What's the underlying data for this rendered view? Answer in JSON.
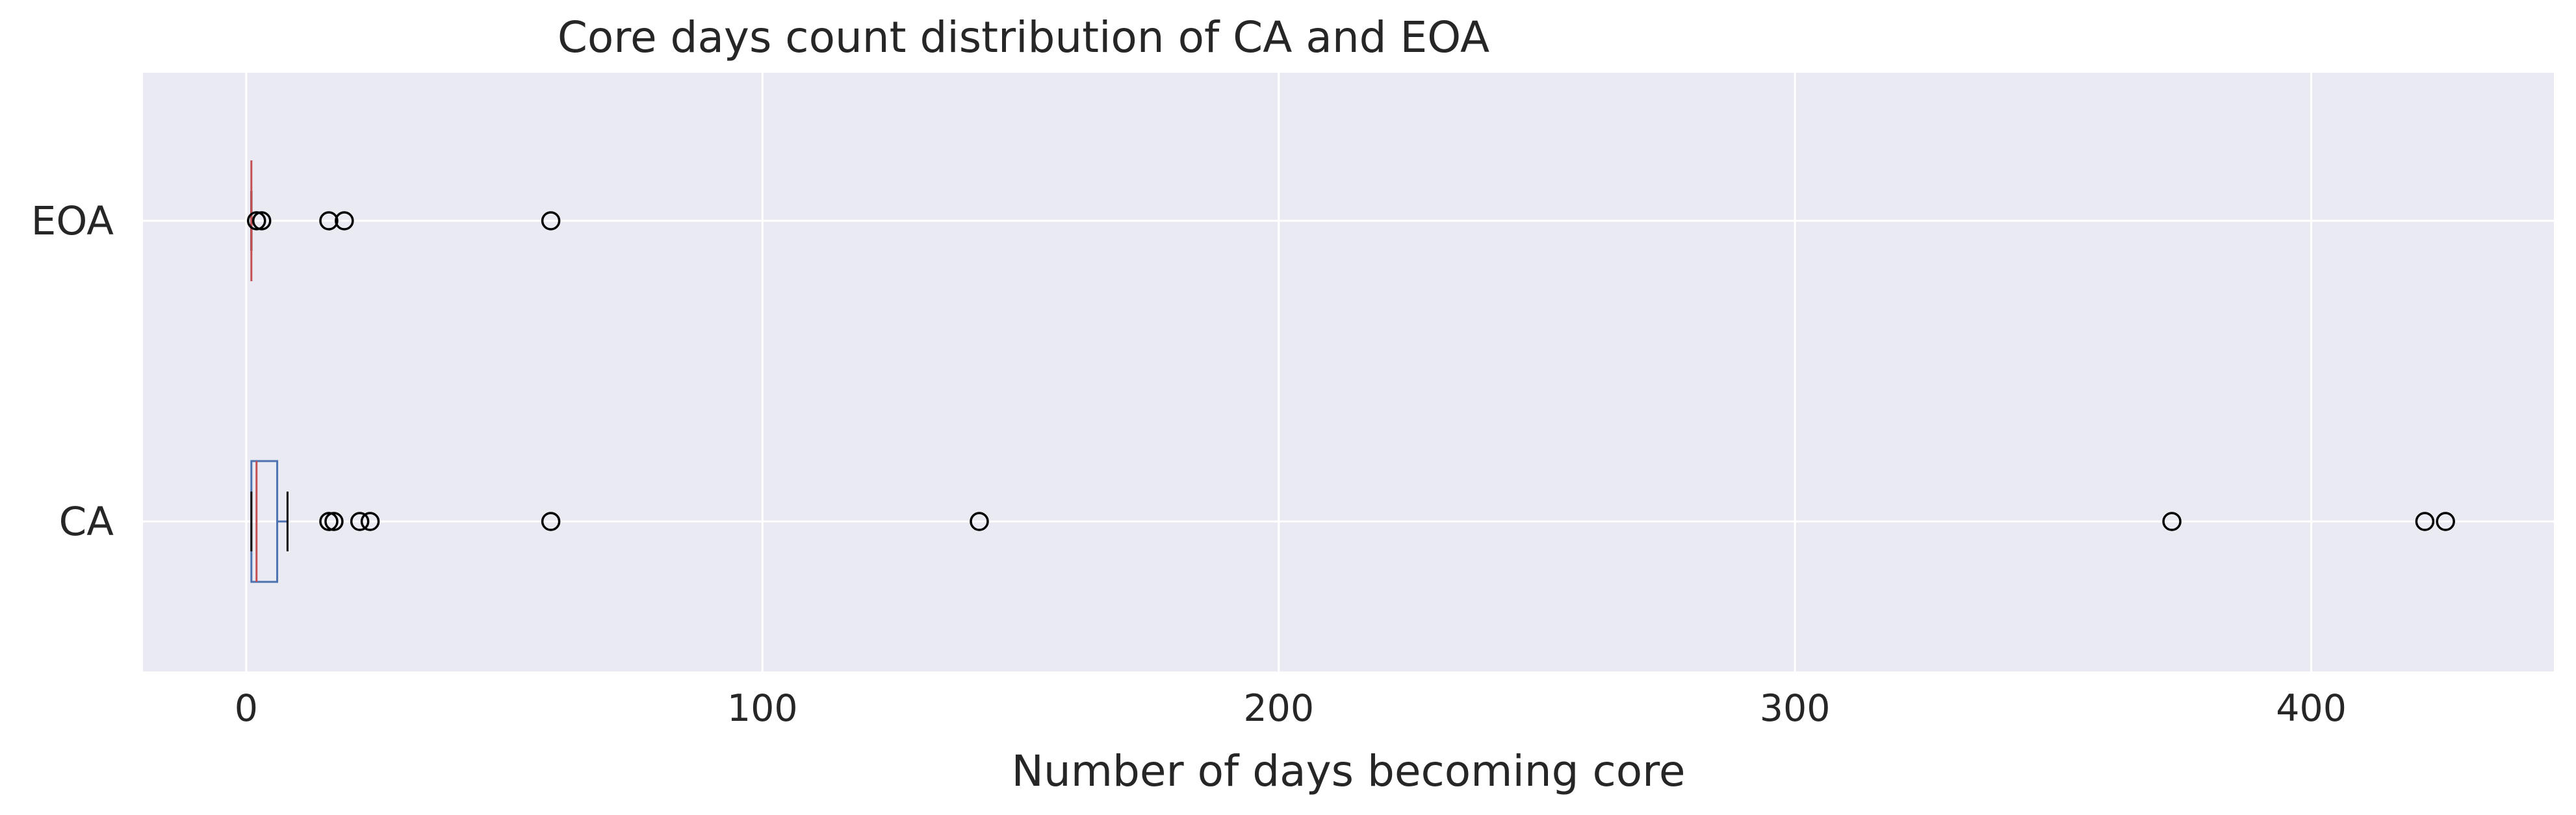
{
  "chart_data": {
    "type": "boxplot",
    "orientation": "horizontal",
    "title": "Core days count distribution of CA and EOA",
    "xlabel": "Number of days becoming core",
    "ylabel": "",
    "xlim": [
      -20,
      447
    ],
    "xticks": [
      0,
      100,
      200,
      300,
      400
    ],
    "xtick_labels": [
      "0",
      "100",
      "200",
      "300",
      "400"
    ],
    "grid": true,
    "categories": [
      "EOA",
      "CA"
    ],
    "series": [
      {
        "name": "EOA",
        "whisker_low": 1,
        "q1": 1,
        "median": 1,
        "q3": 1,
        "whisker_high": 1,
        "outliers": [
          2,
          3,
          16,
          19,
          59
        ]
      },
      {
        "name": "CA",
        "whisker_low": 1,
        "q1": 1,
        "median": 2,
        "q3": 6,
        "whisker_high": 8,
        "outliers": [
          16,
          17,
          22,
          24,
          59,
          142,
          373,
          422,
          426
        ]
      }
    ],
    "colors": {
      "background": "#eaeaf2",
      "grid": "#ffffff",
      "box": "#4c72b0",
      "median": "#c44e52",
      "whisker": "#000000",
      "outlier": "#000000"
    }
  }
}
